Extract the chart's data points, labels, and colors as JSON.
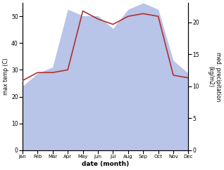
{
  "months": [
    "Jan",
    "Feb",
    "Mar",
    "Apr",
    "May",
    "Jun",
    "Jul",
    "Aug",
    "Sep",
    "Oct",
    "Nov",
    "Dec"
  ],
  "temp": [
    26,
    29,
    29,
    30,
    52,
    49,
    47,
    50,
    51,
    50,
    28,
    27
  ],
  "precip": [
    10,
    12,
    13,
    22,
    21,
    21,
    19,
    22,
    23,
    22,
    14,
    12
  ],
  "temp_color": "#b03030",
  "precip_fill_color": "#b8c4e8",
  "ylabel_left": "max temp (C)",
  "ylabel_right": "med. precipitation\n(kg/m2)",
  "xlabel": "date (month)",
  "ylim_left": [
    0,
    55
  ],
  "ylim_right": [
    0,
    23
  ],
  "yticks_left": [
    0,
    10,
    20,
    30,
    40,
    50
  ],
  "yticks_right": [
    0,
    5,
    10,
    15,
    20
  ],
  "background_color": "#ffffff"
}
